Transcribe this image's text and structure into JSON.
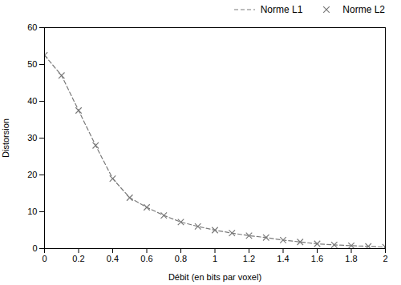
{
  "chart_data": {
    "type": "line",
    "xlabel": "Débit (en bits par voxel)",
    "ylabel": "Distorsion",
    "x": [
      0.0,
      0.1,
      0.2,
      0.3,
      0.4,
      0.5,
      0.6,
      0.7,
      0.8,
      0.9,
      1.0,
      1.1,
      1.2,
      1.3,
      1.4,
      1.5,
      1.6,
      1.7,
      1.8,
      1.9,
      2.0
    ],
    "series": [
      {
        "name": "Norme L1",
        "type": "line",
        "line_style": "dashed",
        "color": "#7a7a7a",
        "values": [
          52.5,
          47.0,
          37.5,
          28.0,
          19.0,
          13.8,
          11.2,
          9.0,
          7.2,
          6.0,
          5.0,
          4.2,
          3.5,
          3.0,
          2.3,
          1.8,
          1.3,
          1.0,
          0.8,
          0.6,
          0.4
        ]
      },
      {
        "name": "Norme L2",
        "type": "scatter",
        "marker": "x",
        "color": "#7a7a7a",
        "values": [
          52.5,
          47.0,
          37.5,
          28.0,
          19.0,
          13.8,
          11.2,
          9.0,
          7.2,
          6.0,
          5.0,
          4.2,
          3.5,
          3.0,
          2.3,
          1.8,
          1.3,
          1.0,
          0.8,
          0.6,
          0.4
        ]
      }
    ],
    "xlim": [
      0,
      2
    ],
    "ylim": [
      0,
      60
    ],
    "xticks": [
      0,
      0.2,
      0.4,
      0.6,
      0.8,
      1.0,
      1.2,
      1.4,
      1.6,
      1.8,
      2.0
    ],
    "yticks": [
      0,
      10,
      20,
      30,
      40,
      50,
      60
    ],
    "grid": false,
    "legend": "upper right"
  }
}
